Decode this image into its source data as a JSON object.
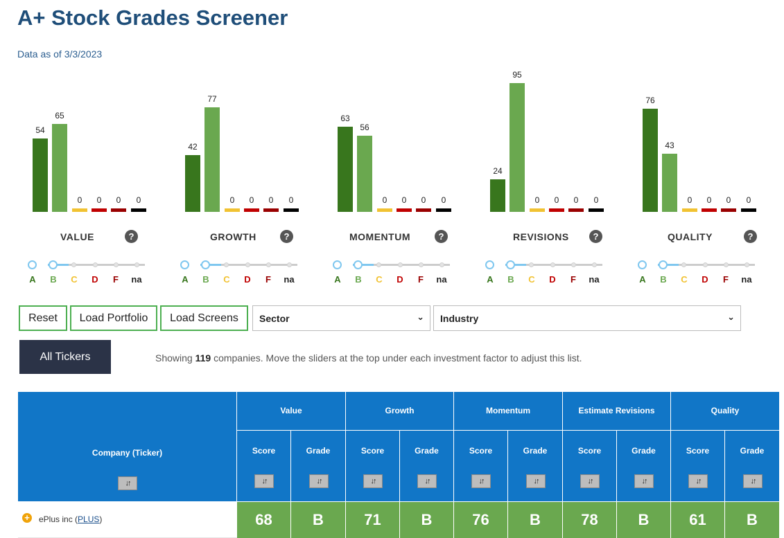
{
  "page": {
    "title": "A+ Stock Grades Screener",
    "data_as_of": "Data as of 3/3/2023"
  },
  "colors": {
    "A": "#38761d",
    "B": "#6aa84f",
    "C": "#f1c232",
    "D": "#c00000",
    "F": "#990000",
    "na": "#000000",
    "header_blue": "#1176c7",
    "cell_green": "#6aa84f"
  },
  "grade_letters": [
    "A",
    "B",
    "C",
    "D",
    "F",
    "na"
  ],
  "factors": [
    {
      "name": "VALUE",
      "counts": [
        54,
        65,
        0,
        0,
        0,
        0
      ],
      "help": "?"
    },
    {
      "name": "GROWTH",
      "counts": [
        42,
        77,
        0,
        0,
        0,
        0
      ],
      "help": "?"
    },
    {
      "name": "MOMENTUM",
      "counts": [
        63,
        56,
        0,
        0,
        0,
        0
      ],
      "help": "?"
    },
    {
      "name": "REVISIONS",
      "counts": [
        24,
        95,
        0,
        0,
        0,
        0
      ],
      "help": "?"
    },
    {
      "name": "QUALITY",
      "counts": [
        76,
        43,
        0,
        0,
        0,
        0
      ],
      "help": "?"
    }
  ],
  "controls": {
    "reset": "Reset",
    "load_portfolio": "Load Portfolio",
    "load_screens": "Load Screens",
    "sector_selected": "Sector",
    "industry_selected": "Industry",
    "all_tickers": "All Tickers",
    "showing_prefix": "Showing ",
    "showing_count": "119",
    "showing_suffix": " companies. Move the sliders at the top under each investment factor to adjust this list."
  },
  "table": {
    "company_header": "Company (Ticker)",
    "sort_glyph": "↓↑",
    "groups": [
      "Value",
      "Growth",
      "Momentum",
      "Estimate Revisions",
      "Quality"
    ],
    "sub_headers": [
      "Score",
      "Grade"
    ],
    "rows": [
      {
        "company": "ePlus inc",
        "ticker": "PLUS",
        "cells": [
          "68",
          "B",
          "71",
          "B",
          "76",
          "B",
          "78",
          "B",
          "61",
          "B"
        ]
      }
    ]
  }
}
